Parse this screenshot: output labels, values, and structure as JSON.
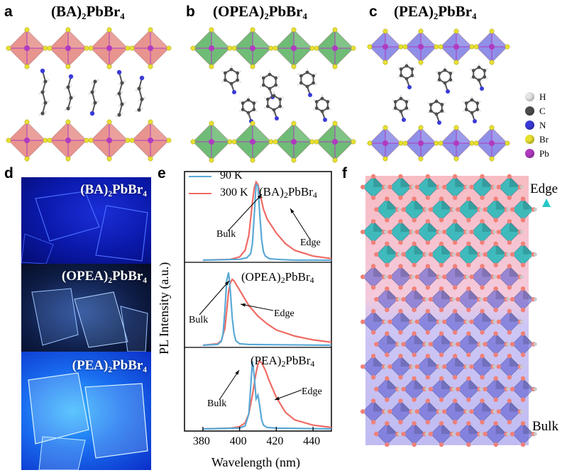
{
  "panels": {
    "a": {
      "label": "a",
      "title": "(BA)₂PbBr₄"
    },
    "b": {
      "label": "b",
      "title": "(OPEA)₂PbBr₄"
    },
    "c": {
      "label": "c",
      "title": "(PEA)₂PbBr₄"
    },
    "d": {
      "label": "d",
      "photos": [
        "(BA)₂PbBr₄",
        "(OPEA)₂PbBr₄",
        "(PEA)₂PbBr₄"
      ]
    },
    "e": {
      "label": "e"
    },
    "f": {
      "label": "f",
      "top_label": "Edge",
      "bottom_label": "Bulk"
    }
  },
  "element_legend": [
    "H",
    "C",
    "N",
    "Br",
    "Pb"
  ],
  "colors": {
    "H": "#e6e6e6",
    "C": "#4d4d4d",
    "N": "#3a3ad8",
    "Br": "#e8e030",
    "Pb": "#b03ac0",
    "ba_octa": "#e0706a",
    "opea_octa": "#3fa64a",
    "pea_octa": "#6a6ae0",
    "series_90K": "#5aa9d6",
    "series_300K": "#ef6b64"
  },
  "chart_data": {
    "type": "line",
    "ylabel": "PL Intensity (a.u.)",
    "xlabel": "Wavelength (nm)",
    "xlim": [
      370,
      450
    ],
    "xticks": [
      380,
      400,
      420,
      440
    ],
    "legend": {
      "entries": [
        "90 K",
        "300 K"
      ],
      "placement": "top-left"
    },
    "subplots": [
      {
        "name": "(BA)",
        "sub": "2",
        "rest": "PbBr",
        "sub2": "4",
        "annotations": [
          "Bulk",
          "Edge"
        ],
        "series": [
          {
            "name": "90 K",
            "x": [
              380,
              400,
              404,
              406,
              407,
              408,
              409,
              410,
              411,
              412,
              413,
              414,
              416,
              420,
              430,
              450
            ],
            "y": [
              0,
              0.01,
              0.03,
              0.08,
              0.2,
              0.55,
              0.92,
              0.9,
              0.55,
              0.25,
              0.1,
              0.05,
              0.02,
              0.01,
              0,
              0
            ]
          },
          {
            "name": "300 K",
            "x": [
              380,
              395,
              400,
              403,
              405,
              407,
              408,
              409,
              410,
              411,
              413,
              415,
              420,
              425,
              430,
              440,
              450
            ],
            "y": [
              0,
              0.01,
              0.04,
              0.12,
              0.3,
              0.7,
              0.88,
              0.95,
              0.92,
              0.82,
              0.62,
              0.5,
              0.33,
              0.2,
              0.12,
              0.05,
              0.02
            ]
          }
        ]
      },
      {
        "name": "(OPEA)",
        "sub": "2",
        "rest": "PbBr",
        "sub2": "4",
        "annotations": [
          "Bulk",
          "Edge"
        ],
        "series": [
          {
            "name": "90 K",
            "x": [
              380,
              388,
              390,
              391,
              392,
              393,
              394,
              395,
              396,
              397,
              398,
              400,
              405,
              450
            ],
            "y": [
              0,
              0.01,
              0.05,
              0.15,
              0.45,
              0.85,
              0.95,
              0.7,
              0.35,
              0.15,
              0.06,
              0.02,
              0.01,
              0
            ]
          },
          {
            "name": "300 K",
            "x": [
              380,
              388,
              390,
              392,
              393,
              394,
              395,
              396,
              397,
              400,
              405,
              410,
              415,
              420,
              430,
              440,
              450
            ],
            "y": [
              0,
              0.02,
              0.06,
              0.22,
              0.45,
              0.7,
              0.82,
              0.86,
              0.84,
              0.72,
              0.52,
              0.38,
              0.28,
              0.2,
              0.12,
              0.07,
              0.04
            ]
          }
        ]
      },
      {
        "name": "(PEA)",
        "sub": "2",
        "rest": "PbBr",
        "sub2": "4",
        "annotations": [
          "Bulk",
          "Edge"
        ],
        "series": [
          {
            "name": "90 K",
            "x": [
              380,
              400,
              403,
              405,
              406,
              407,
              408,
              409,
              410,
              411,
              412,
              413,
              415,
              420,
              450
            ],
            "y": [
              0,
              0.01,
              0.04,
              0.2,
              0.55,
              0.9,
              0.7,
              0.4,
              0.45,
              0.3,
              0.12,
              0.05,
              0.02,
              0.01,
              0
            ]
          },
          {
            "name": "300 K",
            "x": [
              380,
              395,
              400,
              403,
              405,
              407,
              409,
              410,
              411,
              412,
              414,
              416,
              420,
              425,
              430,
              440,
              450
            ],
            "y": [
              0,
              0.01,
              0.03,
              0.08,
              0.2,
              0.45,
              0.75,
              0.86,
              0.9,
              0.88,
              0.78,
              0.65,
              0.42,
              0.22,
              0.12,
              0.05,
              0.02
            ]
          }
        ]
      }
    ]
  }
}
